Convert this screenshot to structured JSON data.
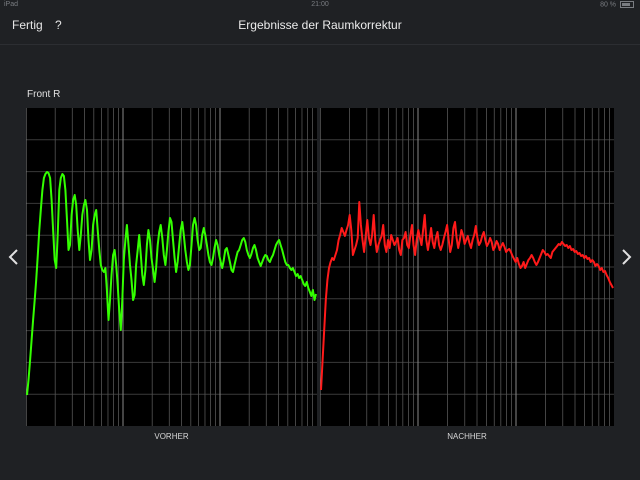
{
  "status_bar": {
    "carrier": "iPad",
    "time": "21:00",
    "battery_text": "80 %",
    "battery_level": 0.8
  },
  "nav": {
    "done_label": "Fertig",
    "help_label": "?",
    "title": "Ergebnisse der Raumkorrektur"
  },
  "channel_label": "Front R",
  "charts": {
    "before": {
      "label": "VORHER",
      "color": "#33ff00",
      "y_values": [
        395,
        380,
        360,
        340,
        320,
        300,
        280,
        255,
        230,
        210,
        190,
        178,
        174,
        172,
        173,
        178,
        200,
        230,
        260,
        268,
        235,
        190,
        178,
        174,
        176,
        190,
        220,
        250,
        245,
        215,
        200,
        195,
        205,
        230,
        250,
        235,
        215,
        205,
        200,
        210,
        240,
        260,
        250,
        225,
        215,
        210,
        230,
        250,
        265,
        270,
        272,
        268,
        290,
        320,
        300,
        275,
        255,
        250,
        265,
        285,
        310,
        330,
        300,
        260,
        240,
        225,
        245,
        265,
        280,
        300,
        295,
        265,
        250,
        235,
        255,
        275,
        285,
        270,
        245,
        230,
        240,
        258,
        270,
        282,
        268,
        245,
        232,
        225,
        238,
        255,
        265,
        250,
        232,
        218,
        222,
        240,
        258,
        272,
        262,
        245,
        230,
        222,
        235,
        250,
        262,
        270,
        265,
        245,
        225,
        218,
        225,
        240,
        250,
        248,
        235,
        228,
        235,
        245,
        255,
        262,
        265,
        258,
        248,
        240,
        245,
        255,
        262,
        268,
        260,
        250,
        248,
        255,
        262,
        270,
        272,
        265,
        258,
        252,
        250,
        245,
        240,
        238,
        242,
        250,
        255,
        258,
        254,
        248,
        245,
        250,
        258,
        262,
        266,
        262,
        258,
        255,
        256,
        260,
        262,
        258,
        255,
        250,
        245,
        242,
        240,
        245,
        250,
        256,
        262,
        265,
        265,
        268,
        270,
        268,
        272,
        276,
        274,
        278,
        276,
        280,
        284,
        286,
        282,
        288,
        292,
        296,
        290,
        300,
        294
      ]
    },
    "after": {
      "label": "NACHHER",
      "color": "#ff1a1a",
      "y_values": [
        390,
        360,
        330,
        300,
        280,
        268,
        262,
        258,
        260,
        255,
        250,
        240,
        235,
        228,
        232,
        236,
        230,
        225,
        215,
        230,
        255,
        250,
        245,
        238,
        202,
        225,
        240,
        252,
        236,
        220,
        238,
        245,
        235,
        215,
        240,
        252,
        245,
        240,
        236,
        225,
        245,
        252,
        240,
        248,
        235,
        240,
        245,
        242,
        238,
        250,
        255,
        240,
        238,
        232,
        245,
        248,
        235,
        225,
        245,
        255,
        240,
        230,
        238,
        245,
        230,
        215,
        240,
        250,
        240,
        228,
        242,
        248,
        238,
        232,
        245,
        250,
        245,
        238,
        232,
        225,
        240,
        252,
        245,
        228,
        222,
        238,
        248,
        240,
        230,
        235,
        244,
        240,
        236,
        243,
        248,
        240,
        235,
        226,
        238,
        245,
        242,
        236,
        232,
        240,
        246,
        243,
        238,
        242,
        250,
        247,
        241,
        244,
        250,
        246,
        243,
        247,
        252,
        250,
        249,
        252,
        256,
        259,
        262,
        258,
        264,
        268,
        266,
        262,
        268,
        264,
        260,
        258,
        255,
        258,
        262,
        265,
        262,
        258,
        254,
        250,
        252,
        255,
        254,
        256,
        258,
        252,
        250,
        248,
        246,
        244,
        245,
        242,
        244,
        246,
        245,
        248,
        246,
        250,
        249,
        252,
        251,
        254,
        253,
        256,
        255,
        258,
        256,
        259,
        258,
        262,
        260,
        262,
        266,
        264,
        266,
        270,
        268,
        272,
        271,
        275,
        278,
        282,
        285,
        288
      ]
    }
  }
}
